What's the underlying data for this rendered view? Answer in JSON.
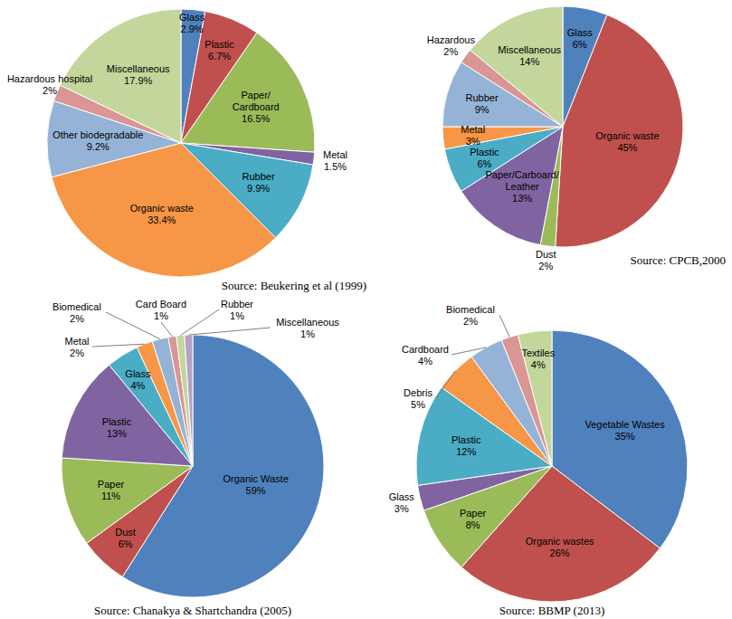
{
  "chart_data": [
    {
      "type": "pie",
      "annotations": [
        "Source: Beukering et al (1999)"
      ],
      "categories": [
        "Glass",
        "Plastic",
        "Paper/Cardboard",
        "Metal",
        "Rubber",
        "Organic waste",
        "Other biodegradable",
        "Hazardous hospital",
        "Miscellaneous"
      ],
      "values": [
        2.9,
        6.7,
        16.5,
        1.5,
        9.9,
        33.4,
        9.2,
        2,
        17.9
      ],
      "value_labels": [
        "2.9%",
        "6.7%",
        "16.5%",
        "1.5%",
        "9.9%",
        "33.4%",
        "9.2%",
        "2%",
        "17.9%"
      ],
      "colors": [
        "#4F81BD",
        "#C0504D",
        "#9BBB59",
        "#8064A2",
        "#4BACC6",
        "#F79646",
        "#95B3D7",
        "#D99694",
        "#C3D69B"
      ],
      "data_labels": true
    },
    {
      "type": "pie",
      "annotations": [
        "Source: CPCB,2000"
      ],
      "categories": [
        "Glass",
        "Organic waste",
        "Dust",
        "Paper/Carboard/Leather",
        "Plastic",
        "Metal",
        "Rubber",
        "Hazardous",
        "Miscellaneous"
      ],
      "values": [
        6,
        45,
        2,
        13,
        6,
        3,
        9,
        2,
        14
      ],
      "value_labels": [
        "6%",
        "45%",
        "2%",
        "13%",
        "6%",
        "3%",
        "9%",
        "2%",
        "14%"
      ],
      "colors": [
        "#4F81BD",
        "#C0504D",
        "#9BBB59",
        "#8064A2",
        "#4BACC6",
        "#F79646",
        "#95B3D7",
        "#D99694",
        "#C3D69B"
      ],
      "data_labels": true
    },
    {
      "type": "pie",
      "annotations": [
        "Source: Chanakya & Shartchandra (2005)"
      ],
      "categories": [
        "Organic Waste",
        "Dust",
        "Paper",
        "Plastic",
        "Glass",
        "Metal",
        "Biomedical",
        "Card Board",
        "Rubber",
        "Miscellaneous"
      ],
      "values": [
        59,
        6,
        11,
        13,
        4,
        2,
        2,
        1,
        1,
        1
      ],
      "value_labels": [
        "59%",
        "6%",
        "11%",
        "13%",
        "4%",
        "2%",
        "2%",
        "1%",
        "1%",
        "1%"
      ],
      "colors": [
        "#4F81BD",
        "#C0504D",
        "#9BBB59",
        "#8064A2",
        "#4BACC6",
        "#F79646",
        "#95B3D7",
        "#D99694",
        "#C3D69B",
        "#B3A2C7"
      ],
      "data_labels": true
    },
    {
      "type": "pie",
      "annotations": [
        "Source: BBMP (2013)"
      ],
      "categories": [
        "Vegetable Wastes",
        "Organic wastes",
        "Paper",
        "Glass",
        "Plastic",
        "Debris",
        "Cardboard",
        "Biomedical",
        "Textiles"
      ],
      "values": [
        35,
        26,
        8,
        3,
        12,
        5,
        4,
        2,
        4
      ],
      "value_labels": [
        "35%",
        "26%",
        "8%",
        "3%",
        "12%",
        "5%",
        "4%",
        "2%",
        "4%"
      ],
      "colors": [
        "#4F81BD",
        "#C0504D",
        "#9BBB59",
        "#8064A2",
        "#4BACC6",
        "#F79646",
        "#95B3D7",
        "#D99694",
        "#C3D69B"
      ],
      "data_labels": true
    }
  ]
}
